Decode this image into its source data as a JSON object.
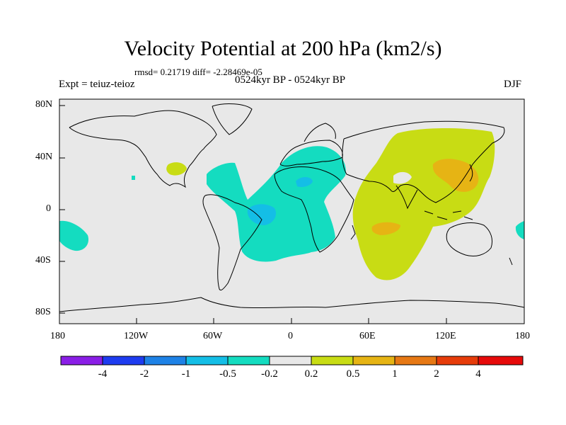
{
  "title": "Velocity Potential at 200 hPa (km2/s)",
  "stats": "rmsd= 0.21719 diff= -2.28469e-05",
  "experiment": "Expt = teiuz-teioz",
  "period": "0524kyr BP - 0524kyr BP",
  "season": "DJF",
  "lat_ticks": [
    "80N",
    "40N",
    "0",
    "40S",
    "80S"
  ],
  "lon_ticks": [
    "180",
    "120W",
    "60W",
    "0",
    "60E",
    "120E",
    "180"
  ],
  "colorbar": {
    "labels": [
      "-4",
      "-2",
      "-1",
      "-0.5",
      "-0.2",
      "0.2",
      "0.5",
      "1",
      "2",
      "4"
    ],
    "colors": [
      "#8a1ee6",
      "#1e3cf0",
      "#1e82e6",
      "#14bee6",
      "#14dcc0",
      "#e8e8e8",
      "#c8dc14",
      "#e6b414",
      "#e67814",
      "#e63c0a",
      "#e60a0a"
    ]
  },
  "ocean_color": "#e8e8e8"
}
